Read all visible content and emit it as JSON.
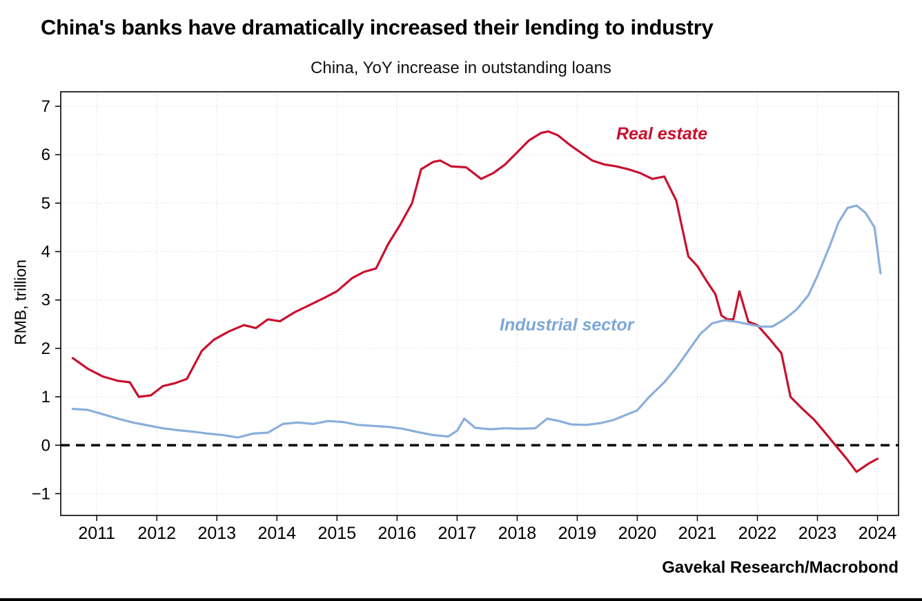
{
  "page": {
    "title": "China's banks have dramatically increased their lending to industry",
    "subtitle": "China, YoY increase in outstanding loans",
    "source": "Gavekal Research/Macrobond"
  },
  "chart_data": {
    "type": "line",
    "title": "China's banks have dramatically increased their lending to industry",
    "subtitle": "China, YoY increase in outstanding loans",
    "xlabel": "",
    "ylabel": "RMB, trillion",
    "x_range": [
      2010.4,
      2024.35
    ],
    "y_range": [
      -1.45,
      7.3
    ],
    "x_ticks": [
      2011,
      2012,
      2013,
      2014,
      2015,
      2016,
      2017,
      2018,
      2019,
      2020,
      2021,
      2022,
      2023,
      2024
    ],
    "y_ticks": [
      -1,
      0,
      1,
      2,
      3,
      4,
      5,
      6,
      7
    ],
    "grid": "dotted both axes",
    "legend_position": "inline annotations",
    "zero_line": {
      "value": 0,
      "style": "dashed",
      "color": "#000000"
    },
    "annotations": [
      {
        "text": "Real estate",
        "color": "#c8102e"
      },
      {
        "text": "Industrial sector",
        "color": "#7da7d8"
      }
    ],
    "series": [
      {
        "name": "Real estate",
        "color": "#c8102e",
        "points": [
          [
            2010.6,
            1.8
          ],
          [
            2010.85,
            1.58
          ],
          [
            2011.1,
            1.42
          ],
          [
            2011.35,
            1.33
          ],
          [
            2011.55,
            1.3
          ],
          [
            2011.7,
            1.0
          ],
          [
            2011.9,
            1.03
          ],
          [
            2012.1,
            1.22
          ],
          [
            2012.3,
            1.28
          ],
          [
            2012.5,
            1.37
          ],
          [
            2012.75,
            1.95
          ],
          [
            2012.95,
            2.18
          ],
          [
            2013.2,
            2.35
          ],
          [
            2013.45,
            2.48
          ],
          [
            2013.65,
            2.42
          ],
          [
            2013.85,
            2.6
          ],
          [
            2014.05,
            2.56
          ],
          [
            2014.3,
            2.75
          ],
          [
            2014.55,
            2.9
          ],
          [
            2014.8,
            3.05
          ],
          [
            2015.0,
            3.18
          ],
          [
            2015.25,
            3.45
          ],
          [
            2015.45,
            3.58
          ],
          [
            2015.65,
            3.65
          ],
          [
            2015.85,
            4.15
          ],
          [
            2016.05,
            4.55
          ],
          [
            2016.25,
            5.0
          ],
          [
            2016.4,
            5.7
          ],
          [
            2016.6,
            5.85
          ],
          [
            2016.72,
            5.88
          ],
          [
            2016.9,
            5.76
          ],
          [
            2017.15,
            5.74
          ],
          [
            2017.4,
            5.5
          ],
          [
            2017.6,
            5.62
          ],
          [
            2017.8,
            5.8
          ],
          [
            2018.0,
            6.05
          ],
          [
            2018.2,
            6.3
          ],
          [
            2018.4,
            6.45
          ],
          [
            2018.52,
            6.48
          ],
          [
            2018.68,
            6.4
          ],
          [
            2018.88,
            6.2
          ],
          [
            2019.05,
            6.05
          ],
          [
            2019.25,
            5.88
          ],
          [
            2019.45,
            5.8
          ],
          [
            2019.65,
            5.76
          ],
          [
            2019.85,
            5.7
          ],
          [
            2020.05,
            5.62
          ],
          [
            2020.25,
            5.5
          ],
          [
            2020.45,
            5.55
          ],
          [
            2020.65,
            5.05
          ],
          [
            2020.85,
            3.9
          ],
          [
            2021.0,
            3.7
          ],
          [
            2021.15,
            3.4
          ],
          [
            2021.3,
            3.12
          ],
          [
            2021.4,
            2.68
          ],
          [
            2021.5,
            2.6
          ],
          [
            2021.6,
            2.6
          ],
          [
            2021.7,
            3.18
          ],
          [
            2021.85,
            2.55
          ],
          [
            2022.0,
            2.48
          ],
          [
            2022.2,
            2.2
          ],
          [
            2022.4,
            1.9
          ],
          [
            2022.55,
            1.0
          ],
          [
            2022.75,
            0.75
          ],
          [
            2022.95,
            0.52
          ],
          [
            2023.1,
            0.3
          ],
          [
            2023.3,
            0.0
          ],
          [
            2023.5,
            -0.3
          ],
          [
            2023.65,
            -0.55
          ],
          [
            2023.85,
            -0.38
          ],
          [
            2024.0,
            -0.28
          ]
        ]
      },
      {
        "name": "Industrial sector",
        "color": "#8aaedd",
        "points": [
          [
            2010.6,
            0.75
          ],
          [
            2010.85,
            0.73
          ],
          [
            2011.1,
            0.64
          ],
          [
            2011.35,
            0.55
          ],
          [
            2011.6,
            0.47
          ],
          [
            2011.85,
            0.41
          ],
          [
            2012.1,
            0.35
          ],
          [
            2012.35,
            0.31
          ],
          [
            2012.6,
            0.28
          ],
          [
            2012.85,
            0.24
          ],
          [
            2013.1,
            0.21
          ],
          [
            2013.35,
            0.16
          ],
          [
            2013.6,
            0.24
          ],
          [
            2013.85,
            0.26
          ],
          [
            2014.1,
            0.44
          ],
          [
            2014.35,
            0.47
          ],
          [
            2014.6,
            0.44
          ],
          [
            2014.85,
            0.5
          ],
          [
            2015.1,
            0.48
          ],
          [
            2015.35,
            0.42
          ],
          [
            2015.6,
            0.4
          ],
          [
            2015.85,
            0.38
          ],
          [
            2016.1,
            0.34
          ],
          [
            2016.35,
            0.27
          ],
          [
            2016.6,
            0.21
          ],
          [
            2016.85,
            0.18
          ],
          [
            2017.0,
            0.3
          ],
          [
            2017.12,
            0.55
          ],
          [
            2017.3,
            0.36
          ],
          [
            2017.55,
            0.33
          ],
          [
            2017.8,
            0.35
          ],
          [
            2018.05,
            0.34
          ],
          [
            2018.3,
            0.35
          ],
          [
            2018.5,
            0.55
          ],
          [
            2018.7,
            0.5
          ],
          [
            2018.9,
            0.43
          ],
          [
            2019.15,
            0.42
          ],
          [
            2019.4,
            0.46
          ],
          [
            2019.6,
            0.52
          ],
          [
            2019.8,
            0.62
          ],
          [
            2020.0,
            0.72
          ],
          [
            2020.2,
            1.0
          ],
          [
            2020.45,
            1.3
          ],
          [
            2020.65,
            1.6
          ],
          [
            2020.85,
            1.95
          ],
          [
            2021.05,
            2.3
          ],
          [
            2021.25,
            2.52
          ],
          [
            2021.45,
            2.58
          ],
          [
            2021.65,
            2.55
          ],
          [
            2021.85,
            2.5
          ],
          [
            2022.05,
            2.45
          ],
          [
            2022.25,
            2.45
          ],
          [
            2022.45,
            2.6
          ],
          [
            2022.65,
            2.8
          ],
          [
            2022.85,
            3.1
          ],
          [
            2023.0,
            3.5
          ],
          [
            2023.2,
            4.1
          ],
          [
            2023.35,
            4.6
          ],
          [
            2023.5,
            4.9
          ],
          [
            2023.65,
            4.95
          ],
          [
            2023.8,
            4.8
          ],
          [
            2023.95,
            4.5
          ],
          [
            2024.05,
            3.55
          ]
        ]
      }
    ]
  }
}
